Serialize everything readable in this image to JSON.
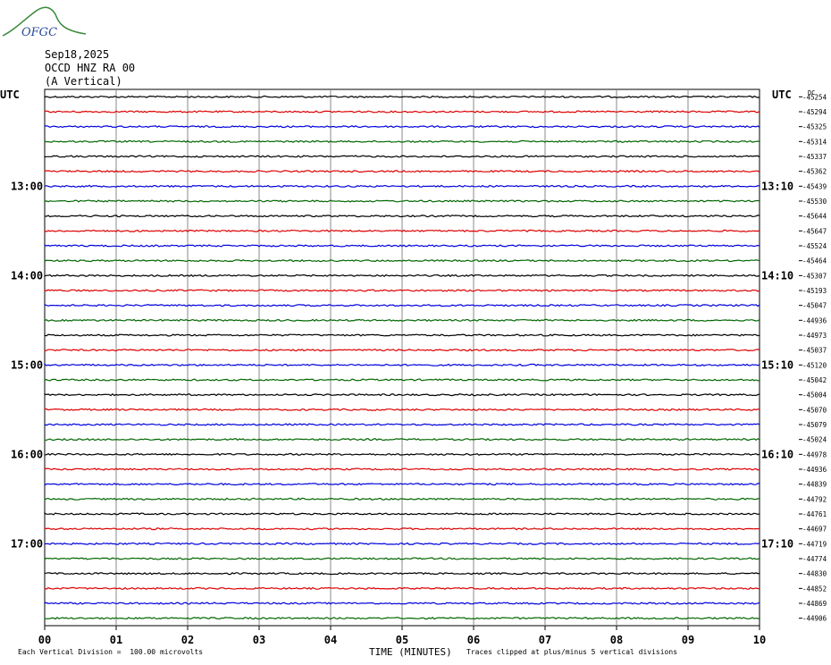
{
  "header": {
    "logo_text": "OFGC",
    "date": "Sep18,2025",
    "station": "OCCD HNZ RA 00",
    "component": "(A Vertical)"
  },
  "chart_data": {
    "type": "line",
    "title": "",
    "xlabel": "TIME (MINUTES)",
    "ylabel": "",
    "xlim": [
      0,
      10
    ],
    "x_ticks": [
      "00",
      "01",
      "02",
      "03",
      "04",
      "05",
      "06",
      "07",
      "08",
      "09",
      "10"
    ],
    "left_axis_label": "UTC",
    "right_axis_label": "UTC",
    "right_column_header": "DC",
    "left_time_labels": [
      {
        "row": 6,
        "label": "13:00"
      },
      {
        "row": 12,
        "label": "14:00"
      },
      {
        "row": 18,
        "label": "15:00"
      },
      {
        "row": 24,
        "label": "16:00"
      },
      {
        "row": 30,
        "label": "17:00"
      }
    ],
    "right_time_labels": [
      {
        "row": 6,
        "label": "13:10"
      },
      {
        "row": 12,
        "label": "14:10"
      },
      {
        "row": 18,
        "label": "15:10"
      },
      {
        "row": 24,
        "label": "16:10"
      },
      {
        "row": 30,
        "label": "17:10"
      }
    ],
    "trace_colors": [
      "#000000",
      "#dd0000",
      "#0000dd",
      "#006600"
    ],
    "dc_offsets": [
      -45254,
      -45294,
      -45325,
      -45314,
      -45337,
      -45362,
      -45439,
      -45530,
      -45644,
      -45647,
      -45524,
      -45464,
      -45307,
      -45193,
      -45047,
      -44936,
      -44973,
      -45037,
      -45120,
      -45042,
      -45004,
      -45070,
      -45079,
      -45024,
      -44978,
      -44936,
      -44839,
      -44792,
      -44761,
      -44697,
      -44719,
      -44774,
      -44830,
      -44852,
      -44869,
      -44906
    ],
    "grid": true,
    "clip_note": "Traces clipped at plus/minus 5 vertical divisions"
  },
  "footer": {
    "scale_text": "Each Vertical Division =  100.00 microvolts",
    "clip_text": "Traces clipped at plus/minus 5 vertical divisions"
  }
}
